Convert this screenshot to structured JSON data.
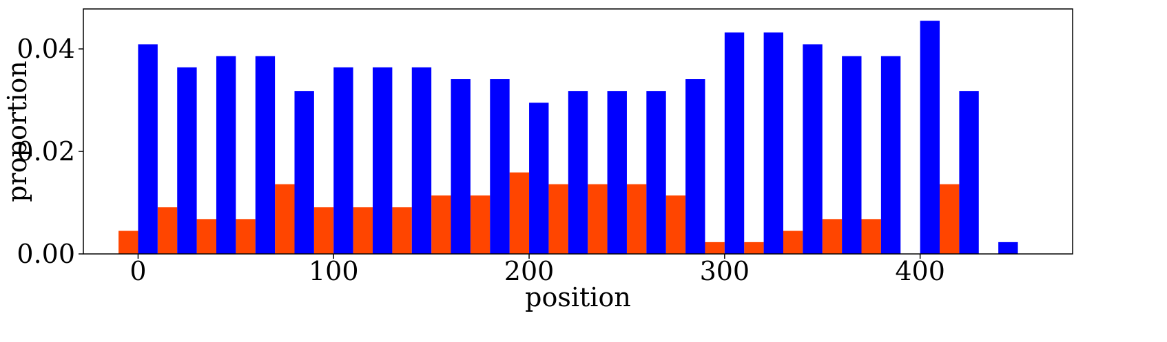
{
  "chart_data": {
    "type": "bar",
    "xlabel": "position",
    "ylabel": "proportion",
    "xlim": [
      -28,
      478
    ],
    "ylim": [
      0,
      0.0478
    ],
    "bin_width": 20,
    "x_ticks": [
      0,
      100,
      200,
      300,
      400
    ],
    "x_tick_labels": [
      "0",
      "100",
      "200",
      "300",
      "400"
    ],
    "y_ticks": [
      0,
      0.02,
      0.04
    ],
    "y_tick_labels": [
      "0.00",
      "0.02",
      "0.04"
    ],
    "grid": false,
    "legend": "none",
    "series": [
      {
        "color": "#ff4500",
        "x": [
          0,
          20,
          40,
          60,
          80,
          100,
          120,
          140,
          160,
          180,
          200,
          220,
          240,
          260,
          280,
          300,
          320,
          340,
          360,
          380,
          400,
          420,
          440
        ],
        "values": [
          0.0045,
          0.0091,
          0.0068,
          0.0068,
          0.0136,
          0.0091,
          0.0091,
          0.0091,
          0.0114,
          0.0114,
          0.0159,
          0.0136,
          0.0136,
          0.0136,
          0.0114,
          0.0023,
          0.0023,
          0.0045,
          0.0068,
          0.0068,
          0.0,
          0.0136,
          0.0
        ]
      },
      {
        "color": "#0000ff",
        "x": [
          0,
          20,
          40,
          60,
          80,
          100,
          120,
          140,
          160,
          180,
          200,
          220,
          240,
          260,
          280,
          300,
          320,
          340,
          360,
          380,
          400,
          420,
          440
        ],
        "values": [
          0.0409,
          0.0364,
          0.0386,
          0.0386,
          0.0318,
          0.0364,
          0.0364,
          0.0364,
          0.0341,
          0.0341,
          0.0295,
          0.0318,
          0.0318,
          0.0318,
          0.0341,
          0.0432,
          0.0432,
          0.0409,
          0.0386,
          0.0386,
          0.0455,
          0.0318,
          0.0023
        ]
      }
    ]
  }
}
